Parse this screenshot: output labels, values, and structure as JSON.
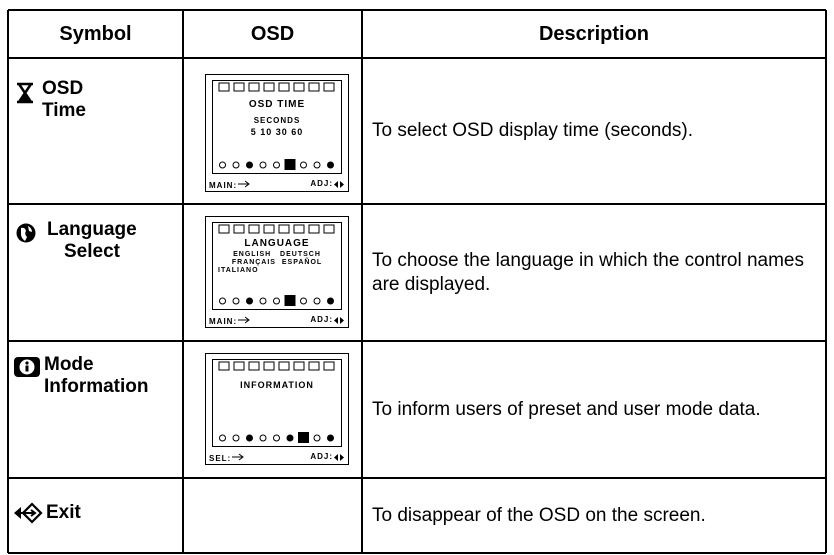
{
  "table": {
    "header": [
      "Symbol",
      "OSD",
      "Description"
    ],
    "rows": [
      {
        "symbol": [
          "OSD",
          "Time"
        ],
        "osd": {
          "title": "OSD TIME",
          "lines": [
            "SECONDS",
            "5  10  30  60"
          ],
          "footer": [
            "MAIN:",
            "ADJ:"
          ]
        },
        "description": "To select OSD display time (seconds)."
      },
      {
        "symbol": [
          "Language",
          "Select"
        ],
        "osd": {
          "title": "LANGUAGE",
          "lines": [
            "ENGLISH   DEUTSCH",
            "FRANÇAIS  ESPAÑOL",
            "ITALIANO"
          ],
          "footer": [
            "MAIN:",
            "ADJ:"
          ]
        },
        "description": "To choose the language in which the control names are displayed."
      },
      {
        "symbol": [
          "Mode",
          "Information"
        ],
        "osd": {
          "title": "INFORMATION",
          "lines": [],
          "footer": [
            "SEL:",
            "ADJ:"
          ]
        },
        "description": "To inform users of preset and user mode data."
      },
      {
        "symbol": [
          "Exit"
        ],
        "description": "To disappear of the OSD on the screen."
      }
    ]
  }
}
